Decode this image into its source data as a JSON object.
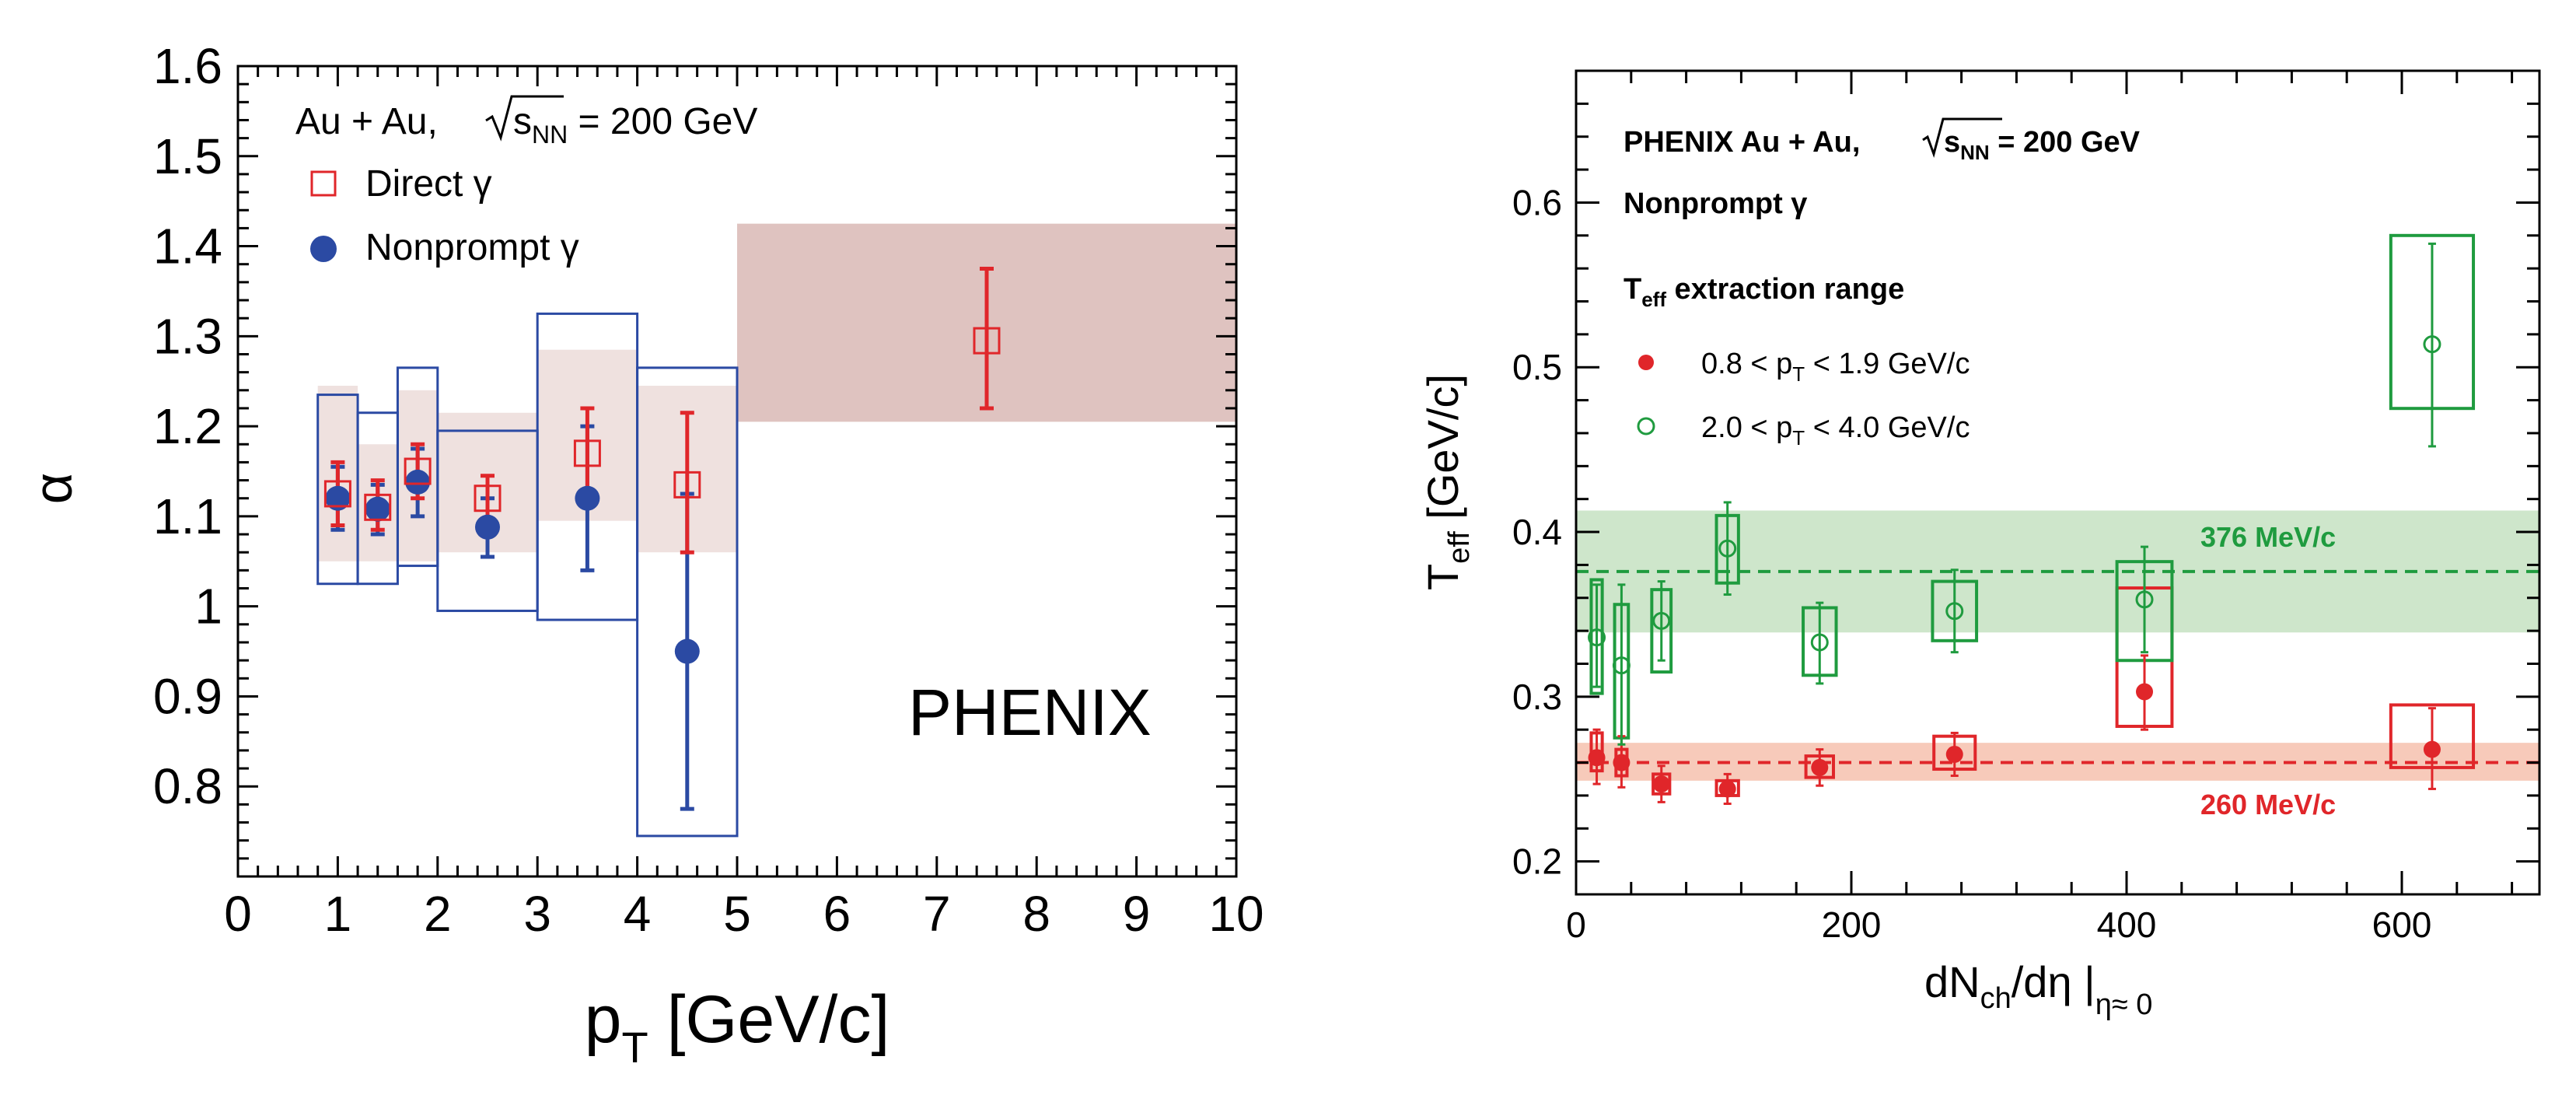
{
  "chart_data": [
    {
      "type": "scatter",
      "panel": "left",
      "xlabel_main": "p",
      "xlabel_sub": "T",
      "xlabel_unit": " [GeV/c]",
      "ylabel": "α",
      "xlim": [
        0,
        10
      ],
      "ylim": [
        0.7,
        1.6
      ],
      "xticks": [
        0,
        1,
        2,
        3,
        4,
        5,
        6,
        7,
        8,
        9,
        10
      ],
      "yticks": [
        0.8,
        0.9,
        1,
        1.1,
        1.2,
        1.3,
        1.4,
        1.5,
        1.6
      ],
      "ytick_labels": [
        "0.8",
        "0.9",
        "1",
        "1.1",
        "1.2",
        "1.3",
        "1.4",
        "1.5",
        "1.6"
      ],
      "legend": {
        "title_pre": "Au + Au, ",
        "title_root": "s",
        "title_sub": "NN",
        "title_post": " = 200 GeV",
        "entries": [
          "Direct γ",
          "Nonprompt γ"
        ]
      },
      "watermark": "PHENIX",
      "colors": {
        "direct": "#e0262a",
        "nonprompt": "#2b4aa3",
        "band": "#c99b96"
      },
      "direct": [
        {
          "x": 1.0,
          "y": 1.125,
          "stat": [
            1.09,
            1.16
          ],
          "sys": [
            1.05,
            1.245
          ],
          "sys_x": [
            0.8,
            1.2
          ]
        },
        {
          "x": 1.4,
          "y": 1.11,
          "stat": [
            1.085,
            1.14
          ],
          "sys": [
            1.05,
            1.18
          ],
          "sys_x": [
            1.2,
            1.6
          ]
        },
        {
          "x": 1.8,
          "y": 1.15,
          "stat": [
            1.12,
            1.18
          ],
          "sys": [
            1.05,
            1.24
          ],
          "sys_x": [
            1.6,
            2.0
          ]
        },
        {
          "x": 2.5,
          "y": 1.12,
          "stat": [
            1.095,
            1.145
          ],
          "sys": [
            1.06,
            1.215
          ],
          "sys_x": [
            2.0,
            3.0
          ]
        },
        {
          "x": 3.5,
          "y": 1.17,
          "stat": [
            1.12,
            1.22
          ],
          "sys": [
            1.095,
            1.285
          ],
          "sys_x": [
            3.0,
            4.0
          ]
        },
        {
          "x": 4.5,
          "y": 1.135,
          "stat": [
            1.06,
            1.215
          ],
          "sys": [
            1.06,
            1.245
          ],
          "sys_x": [
            4.0,
            5.0
          ]
        },
        {
          "x": 7.5,
          "y": 1.295,
          "stat": [
            1.22,
            1.375
          ],
          "sys": [
            1.205,
            1.425
          ],
          "sys_x": [
            5.0,
            10.0
          ]
        }
      ],
      "nonprompt": [
        {
          "x": 1.0,
          "y": 1.12,
          "stat": [
            1.085,
            1.155
          ],
          "sys": [
            1.025,
            1.235
          ],
          "sys_x": [
            0.8,
            1.2
          ]
        },
        {
          "x": 1.4,
          "y": 1.108,
          "stat": [
            1.08,
            1.135
          ],
          "sys": [
            1.025,
            1.215
          ],
          "sys_x": [
            1.2,
            1.6
          ]
        },
        {
          "x": 1.8,
          "y": 1.138,
          "stat": [
            1.1,
            1.175
          ],
          "sys": [
            1.045,
            1.265
          ],
          "sys_x": [
            1.6,
            2.0
          ]
        },
        {
          "x": 2.5,
          "y": 1.088,
          "stat": [
            1.055,
            1.12
          ],
          "sys": [
            0.995,
            1.195
          ],
          "sys_x": [
            2.0,
            3.0
          ]
        },
        {
          "x": 3.5,
          "y": 1.12,
          "stat": [
            1.04,
            1.2
          ],
          "sys": [
            0.985,
            1.325
          ],
          "sys_x": [
            3.0,
            4.0
          ]
        },
        {
          "x": 4.5,
          "y": 0.95,
          "stat": [
            0.775,
            1.125
          ],
          "sys": [
            0.745,
            1.265
          ],
          "sys_x": [
            4.0,
            5.0
          ]
        }
      ]
    },
    {
      "type": "scatter",
      "panel": "right",
      "xlabel_main": "dN",
      "xlabel_sub": "ch",
      "xlabel_mid": "/dη |",
      "xlabel_sub2": "η≈ 0",
      "ylabel_main": "T",
      "ylabel_sub": "eff",
      "ylabel_unit": " [GeV/c]",
      "xlim": [
        0,
        700
      ],
      "ylim": [
        0.18,
        0.68
      ],
      "xticks": [
        0,
        200,
        400,
        600
      ],
      "xticks_minor_step": 40,
      "yticks": [
        0.2,
        0.3,
        0.4,
        0.5,
        0.6
      ],
      "ytick_labels": [
        "0.2",
        "0.3",
        "0.4",
        "0.5",
        "0.6"
      ],
      "yticks_minor_step": 0.02,
      "legend": {
        "title_pre": "PHENIX Au + Au, ",
        "title_root": "s",
        "title_sub": "NN",
        "title_post": " = 200 GeV",
        "subtitle": "Nonprompt γ",
        "range_title_main": "T",
        "range_title_sub": "eff",
        "range_title_post": " extraction range",
        "entries": [
          {
            "pre": "0.8 < p",
            "sub": "T",
            "post": " < 1.9 GeV/c"
          },
          {
            "pre": "2.0 < p",
            "sub": "T",
            "post": " < 4.0 GeV/c"
          }
        ]
      },
      "colors": {
        "low": "#e0262a",
        "high": "#1f9b3f",
        "band_low": "#f6c1ae",
        "band_high": "#c6e2c2"
      },
      "fits": [
        {
          "label": "376 MeV/c",
          "value": 0.376,
          "band": [
            0.339,
            0.413
          ],
          "series": "high"
        },
        {
          "label": "260 MeV/c",
          "value": 0.26,
          "band": [
            0.249,
            0.272
          ],
          "series": "low"
        }
      ],
      "low": [
        {
          "x": 15,
          "y": 0.263,
          "stat": [
            0.247,
            0.28
          ],
          "sys": [
            0.255,
            0.278
          ],
          "sys_x": [
            11,
            19
          ]
        },
        {
          "x": 33,
          "y": 0.26,
          "stat": [
            0.245,
            0.276
          ],
          "sys": [
            0.252,
            0.268
          ],
          "sys_x": [
            29,
            37
          ]
        },
        {
          "x": 62,
          "y": 0.247,
          "stat": [
            0.236,
            0.258
          ],
          "sys": [
            0.241,
            0.253
          ],
          "sys_x": [
            56,
            68
          ]
        },
        {
          "x": 110,
          "y": 0.244,
          "stat": [
            0.235,
            0.253
          ],
          "sys": [
            0.24,
            0.249
          ],
          "sys_x": [
            102,
            118
          ]
        },
        {
          "x": 177,
          "y": 0.257,
          "stat": [
            0.246,
            0.268
          ],
          "sys": [
            0.251,
            0.264
          ],
          "sys_x": [
            167,
            187
          ]
        },
        {
          "x": 275,
          "y": 0.265,
          "stat": [
            0.252,
            0.278
          ],
          "sys": [
            0.256,
            0.276
          ],
          "sys_x": [
            260,
            290
          ]
        },
        {
          "x": 413,
          "y": 0.303,
          "stat": [
            0.28,
            0.325
          ],
          "sys": [
            0.282,
            0.366
          ],
          "sys_x": [
            393,
            433
          ]
        },
        {
          "x": 622,
          "y": 0.268,
          "stat": [
            0.244,
            0.293
          ],
          "sys": [
            0.257,
            0.295
          ],
          "sys_x": [
            592,
            652
          ]
        }
      ],
      "high": [
        {
          "x": 15,
          "y": 0.336,
          "stat": [
            0.306,
            0.368
          ],
          "sys": [
            0.302,
            0.371
          ],
          "sys_x": [
            11,
            19
          ]
        },
        {
          "x": 33,
          "y": 0.319,
          "stat": [
            0.271,
            0.368
          ],
          "sys": [
            0.275,
            0.356
          ],
          "sys_x": [
            28,
            38
          ]
        },
        {
          "x": 62,
          "y": 0.346,
          "stat": [
            0.322,
            0.37
          ],
          "sys": [
            0.315,
            0.365
          ],
          "sys_x": [
            55,
            69
          ]
        },
        {
          "x": 110,
          "y": 0.39,
          "stat": [
            0.362,
            0.418
          ],
          "sys": [
            0.369,
            0.41
          ],
          "sys_x": [
            102,
            118
          ]
        },
        {
          "x": 177,
          "y": 0.333,
          "stat": [
            0.308,
            0.357
          ],
          "sys": [
            0.313,
            0.354
          ],
          "sys_x": [
            165,
            189
          ]
        },
        {
          "x": 275,
          "y": 0.352,
          "stat": [
            0.327,
            0.377
          ],
          "sys": [
            0.334,
            0.37
          ],
          "sys_x": [
            259,
            291
          ]
        },
        {
          "x": 413,
          "y": 0.359,
          "stat": [
            0.327,
            0.391
          ],
          "sys": [
            0.322,
            0.382
          ],
          "sys_x": [
            393,
            433
          ]
        },
        {
          "x": 622,
          "y": 0.514,
          "stat": [
            0.452,
            0.575
          ],
          "sys": [
            0.475,
            0.58
          ],
          "sys_x": [
            592,
            652
          ]
        }
      ]
    }
  ]
}
